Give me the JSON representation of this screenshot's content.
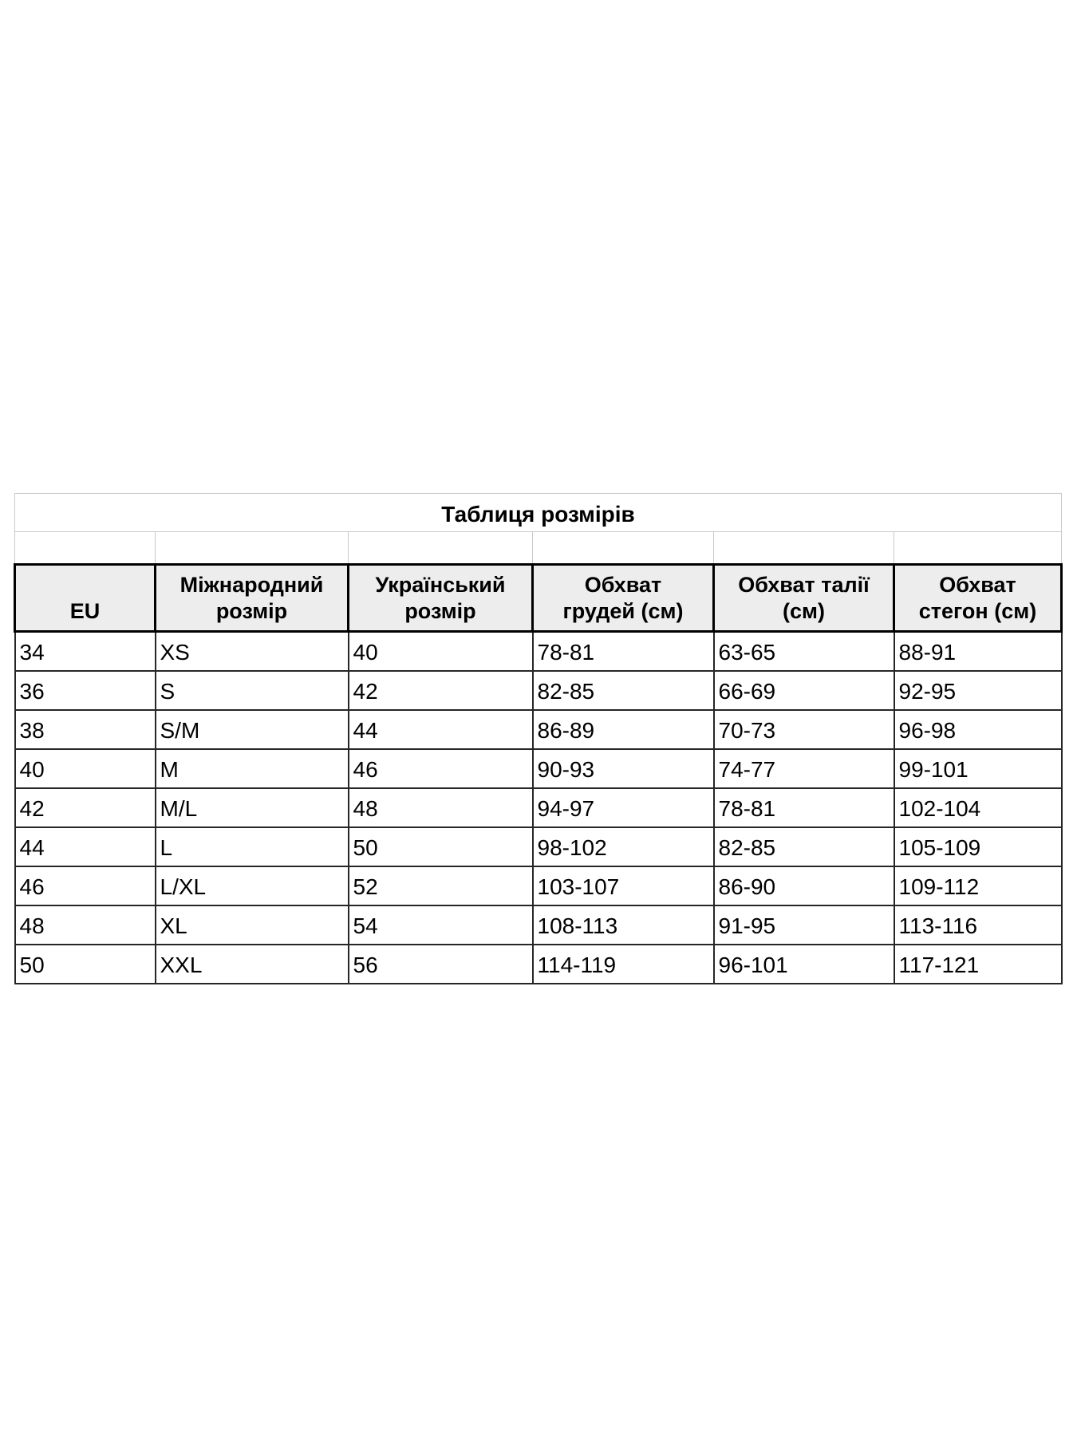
{
  "table": {
    "title": "Таблиця розмірів",
    "columns": [
      "EU",
      "Міжнародний\nрозмір",
      "Український\nрозмір",
      "Обхват\nгрудей (см)",
      "Обхват талії\n(см)",
      "Обхват\nстегон (см)"
    ],
    "rows": [
      [
        "34",
        "XS",
        "40",
        "78-81",
        "63-65",
        "88-91"
      ],
      [
        "36",
        "S",
        "42",
        "82-85",
        "66-69",
        "92-95"
      ],
      [
        "38",
        "S/M",
        "44",
        "86-89",
        "70-73",
        "96-98"
      ],
      [
        "40",
        "M",
        "46",
        "90-93",
        "74-77",
        "99-101"
      ],
      [
        "42",
        "M/L",
        "48",
        "94-97",
        "78-81",
        "102-104"
      ],
      [
        "44",
        "L",
        "50",
        "98-102",
        "82-85",
        "105-109"
      ],
      [
        "46",
        "L/XL",
        "52",
        "103-107",
        "86-90",
        "109-112"
      ],
      [
        "48",
        "XL",
        "54",
        "108-113",
        "91-95",
        "113-116"
      ],
      [
        "50",
        "XXL",
        "56",
        "114-119",
        "96-101",
        "117-121"
      ]
    ],
    "colors": {
      "header_bg": "#ededed",
      "grid_dark": "#262626",
      "grid_light": "#c9c9c9",
      "text": "#000000",
      "page_bg": "#ffffff"
    }
  }
}
